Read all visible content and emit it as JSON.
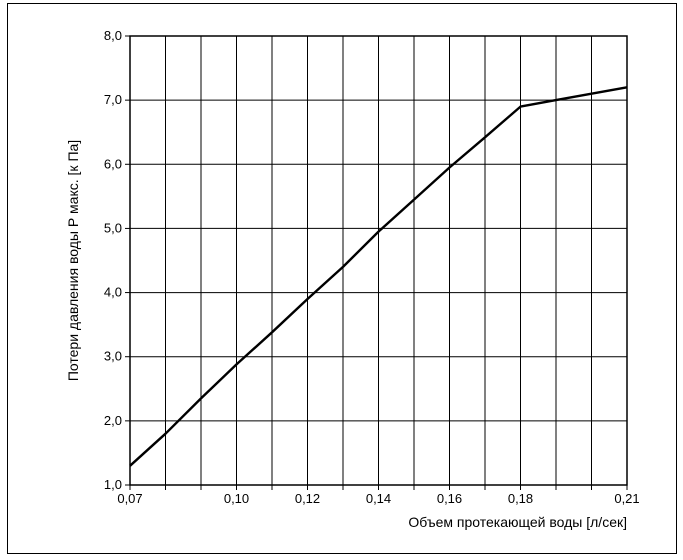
{
  "chart_data": {
    "type": "line",
    "title": "",
    "xlabel": "Объем протекающей воды [л/сек]",
    "ylabel": "Потери давления воды Р макс. [к Па]",
    "xlim": [
      0.07,
      0.21
    ],
    "ylim": [
      1.0,
      8.0
    ],
    "grid": true,
    "line_color": "#000000",
    "x_ticks": [
      0.07,
      0.08,
      0.09,
      0.1,
      0.11,
      0.12,
      0.13,
      0.14,
      0.15,
      0.16,
      0.17,
      0.18,
      0.19,
      0.2,
      0.21
    ],
    "x_tick_labels": [
      "0,07",
      "",
      "",
      "0,10",
      "",
      "0,12",
      "",
      "0,14",
      "",
      "0,16",
      "",
      "0,18",
      "",
      "",
      "0,21"
    ],
    "y_ticks": [
      1.0,
      2.0,
      3.0,
      4.0,
      5.0,
      6.0,
      7.0,
      8.0
    ],
    "y_tick_labels": [
      "1,0",
      "2,0",
      "3,0",
      "4,0",
      "5,0",
      "6,0",
      "7,0",
      "8,0"
    ],
    "series": [
      {
        "x": [
          0.07,
          0.08,
          0.09,
          0.1,
          0.11,
          0.12,
          0.13,
          0.14,
          0.15,
          0.16,
          0.17,
          0.18,
          0.19,
          0.2,
          0.21
        ],
        "y": [
          1.3,
          1.8,
          2.35,
          2.88,
          3.38,
          3.9,
          4.4,
          4.95,
          5.45,
          5.95,
          6.42,
          6.9,
          7.0,
          7.1,
          7.2
        ]
      }
    ]
  }
}
